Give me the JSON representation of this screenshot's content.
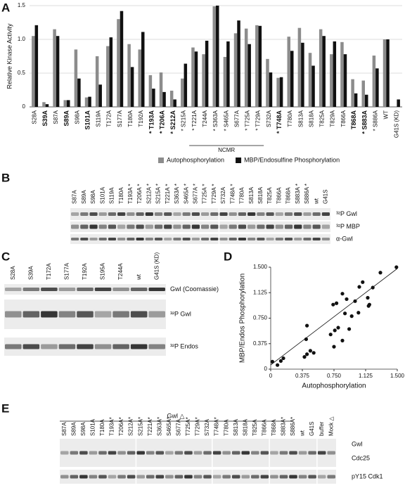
{
  "panel_labels": [
    "A",
    "B",
    "C",
    "D",
    "E"
  ],
  "chart_data": [
    {
      "type": "bar",
      "ylabel": "Relative Kinase Activity",
      "categories": [
        "S28A",
        "S39A",
        "S87A",
        "S89A",
        "S98A",
        "S101A",
        "S119A",
        "T172A",
        "S177A",
        "T180A",
        "T192A",
        "* T193A",
        "* T206A",
        "* S212A",
        "* S215A",
        "* T221A",
        "T244A",
        "* S363A",
        "* S465A",
        "S677A",
        "* T725A",
        "* T729A",
        "S732A",
        "* T748A",
        "T780A",
        "S813A",
        "S818A",
        "T825A",
        "T829A",
        "T866A",
        "T868A",
        "* S883A",
        "* S886A",
        "WT",
        "G41S (KD)"
      ],
      "bold": [
        false,
        true,
        false,
        true,
        false,
        true,
        false,
        false,
        false,
        false,
        false,
        true,
        true,
        true,
        false,
        false,
        false,
        false,
        false,
        false,
        false,
        false,
        false,
        true,
        false,
        false,
        false,
        false,
        false,
        false,
        true,
        true,
        false,
        false,
        false
      ],
      "series": [
        {
          "name": "Autophosphorylation",
          "color": "#8c8c8c",
          "values": [
            1.05,
            0.07,
            1.15,
            0.1,
            0.85,
            0.14,
            0.75,
            0.9,
            1.3,
            0.93,
            0.85,
            0.47,
            0.51,
            0.24,
            0.42,
            0.88,
            0.78,
            1.49,
            0.74,
            1.09,
            1.16,
            1.21,
            0.71,
            0.43,
            1.04,
            1.17,
            0.8,
            1.15,
            0.78,
            0.96,
            0.41,
            0.39,
            0.76,
            1.0,
            0
          ]
        },
        {
          "name": "MBP/Endosulfine Phosphorylation",
          "color": "#111111",
          "values": [
            1.21,
            0.04,
            1.05,
            0.1,
            0.42,
            0.15,
            0.33,
            1.03,
            1.42,
            0.59,
            1.11,
            0.27,
            0.22,
            0.11,
            0.64,
            0.82,
            0.98,
            1.5,
            0.97,
            1.28,
            0.93,
            1.2,
            0.51,
            0.44,
            0.83,
            0.95,
            0.61,
            1.05,
            0.97,
            0.78,
            0.2,
            0.18,
            0.57,
            1.0,
            0.11
          ]
        }
      ],
      "annotation": "NCMR",
      "ylim": [
        0,
        1.5
      ],
      "yticks": [
        0,
        0.5,
        {
          "value": 1,
          "label": "1.0"
        },
        1.5
      ],
      "grid": true,
      "legend": "bottom"
    },
    {
      "type": "scatter",
      "xlabel": "Autophosphorylation",
      "ylabel": "MBP/Endos Phosphorylation",
      "x": [
        0.02,
        0.08,
        0.12,
        0.15,
        0.4,
        0.43,
        0.47,
        0.51,
        0.42,
        0.43,
        0.71,
        0.75,
        0.76,
        0.78,
        0.74,
        0.8,
        0.85,
        0.85,
        0.88,
        0.9,
        0.93,
        0.96,
        1.0,
        1.04,
        1.05,
        1.09,
        1.15,
        1.16,
        1.17,
        1.21,
        1.3,
        1.49
      ],
      "y": [
        0.11,
        0.06,
        0.12,
        0.16,
        0.18,
        0.22,
        0.27,
        0.24,
        0.44,
        0.64,
        0.51,
        0.33,
        0.57,
        0.97,
        0.95,
        0.61,
        0.42,
        1.11,
        0.82,
        1.03,
        0.59,
        0.78,
        1.0,
        0.83,
        1.21,
        1.28,
        1.05,
        0.93,
        0.95,
        1.2,
        1.42,
        1.5
      ],
      "xlim": [
        0,
        1.5
      ],
      "ylim": [
        0,
        1.5
      ],
      "xticks": [
        0,
        0.375,
        {
          "value": 0.75,
          "label": "0.750"
        },
        1.125,
        {
          "value": 1.5,
          "label": "1.500"
        }
      ],
      "yticks": [
        0,
        0.375,
        {
          "value": 0.75,
          "label": "0.750"
        },
        1.125,
        {
          "value": 1.5,
          "label": "1.500"
        }
      ],
      "color": "#111111"
    }
  ],
  "blot_b": {
    "lanes": [
      "S87A",
      "S89A",
      "S98A",
      "S101A",
      "S119A",
      "T180A",
      "T193A *",
      "T206A *",
      "S212A *",
      "S215A *",
      "T221A *",
      "S363A *",
      "S465A *",
      "S677A *",
      "T725A *",
      "T729A *",
      "S732A",
      "T748A *",
      "T780A",
      "S813A",
      "S818A",
      "T825A",
      "T866A",
      "T868A",
      "S883A *",
      "S886A *",
      "wt",
      "G41S"
    ],
    "rows": [
      "³²P Gwl",
      "³²P MBP",
      "α-Gwl"
    ]
  },
  "blot_c": {
    "lanes": [
      "S28A",
      "S39A",
      "T172A",
      "S177A",
      "T192A",
      "S195A",
      "T244A",
      "wt",
      "G41S (KD)"
    ],
    "rows": [
      "Gwl (Coomassie)",
      "³²P Gwl",
      "³²P Endos"
    ]
  },
  "blot_e": {
    "header": "Gwl △",
    "lanes": [
      "S87A",
      "S89A",
      "S98A",
      "S101A",
      "T180A",
      "T193A*",
      "T206A*",
      "S212A*",
      "S215A*",
      "T221A*",
      "S363A*",
      "S465A*",
      "S677A",
      "T725A*",
      "T729A*",
      "S732A",
      "T748A*",
      "T780A",
      "S813A",
      "S818A",
      "T825A",
      "T866A",
      "T868A",
      "S883A*",
      "S886A*",
      "wt",
      "G41S",
      "buffer",
      "Mock △"
    ],
    "rows": [
      "Gwl",
      "Cdc25",
      "pY15 Cdk1"
    ]
  }
}
